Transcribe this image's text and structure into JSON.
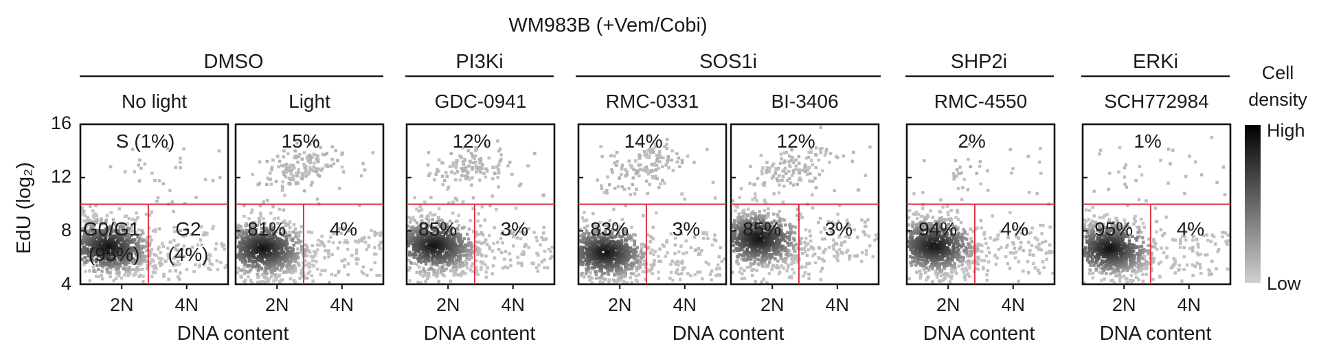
{
  "figure": {
    "title": "WM983B (+Vem/Cobi)",
    "ylabel": "EdU (log₂)",
    "xlabel": "DNA content",
    "colorbar": {
      "title_line1": "Cell",
      "title_line2": "density",
      "high": "High",
      "low": "Low"
    },
    "groups": [
      {
        "label": "DMSO"
      },
      {
        "label": "PI3Ki"
      },
      {
        "label": "SOS1i"
      },
      {
        "label": "SHP2i"
      },
      {
        "label": "ERKi"
      }
    ]
  },
  "chart_data": {
    "type": "scatter",
    "ylim": [
      4,
      16
    ],
    "yticks": [
      4,
      8,
      12,
      16
    ],
    "xtick_labels": [
      "2N",
      "4N"
    ],
    "gates": {
      "s_phase_edu_threshold": 10
    },
    "colors": {
      "gate": "#e03040",
      "s_label": "#e02030",
      "points_low": "#c4c4c4",
      "points_high": "#111111"
    },
    "panels": [
      {
        "label": "No light",
        "label_color": "#8c8c8c",
        "s": "S (1%)",
        "g1": "G0/G1",
        "g1_value": "(95%)",
        "g2": "G2",
        "g2_value": "(4%)",
        "seed": 11,
        "s_density": 0.01,
        "core": [
          2.55,
          6.9
        ]
      },
      {
        "label": "Light",
        "label_color": "#1a1a1a",
        "s": "15%",
        "g1": "81%",
        "g2": "4%",
        "seed": 23,
        "s_density": 0.15,
        "core": [
          2.5,
          6.8
        ]
      },
      {
        "label": "GDC-0941",
        "label_color": "#1d7a3c",
        "s": "12%",
        "g1": "85%",
        "g2": "3%",
        "seed": 37,
        "s_density": 0.12,
        "core": [
          2.5,
          7.0
        ]
      },
      {
        "label": "RMC-0331",
        "label_color": "#f0a830",
        "s": "14%",
        "g1": "83%",
        "g2": "3%",
        "seed": 41,
        "s_density": 0.14,
        "core": [
          2.4,
          6.5
        ]
      },
      {
        "label": "BI-3406",
        "label_color": "#2aa8d8",
        "s": "12%",
        "g1": "85%",
        "g2": "3%",
        "seed": 53,
        "s_density": 0.12,
        "core": [
          2.5,
          7.5
        ]
      },
      {
        "label": "RMC-4550",
        "label_color": "#e02030",
        "s": "2%",
        "g1": "94%",
        "g2": "4%",
        "seed": 67,
        "s_density": 0.02,
        "core": [
          2.45,
          7.0
        ]
      },
      {
        "label": "SCH772984",
        "label_color": "#8a2a9a",
        "s": "1%",
        "g1": "95%",
        "g2": "4%",
        "seed": 79,
        "s_density": 0.01,
        "core": [
          2.45,
          6.8
        ]
      }
    ]
  }
}
